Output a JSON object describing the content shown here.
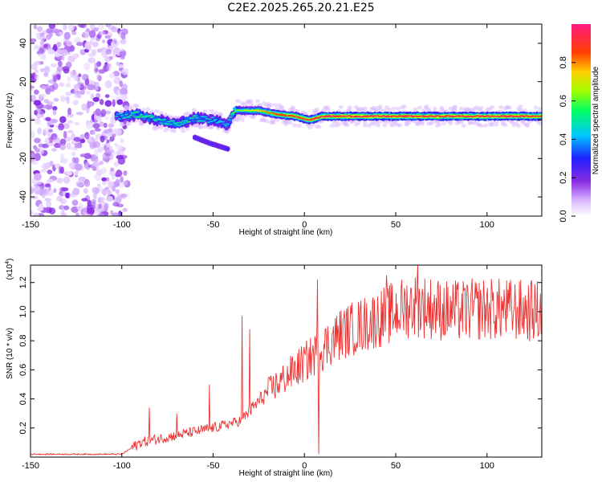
{
  "title": "C2E2.2025.265.20.21.E25",
  "chart_data": [
    {
      "type": "heatmap",
      "xlabel": "Height of straight line (km)",
      "ylabel": "Frequency (Hz)",
      "xlim": [
        -150,
        130
      ],
      "ylim": [
        -50,
        50
      ],
      "xticks": [
        "-150",
        "-100",
        "-50",
        "0",
        "50",
        "100"
      ],
      "yticks": [
        "-40",
        "-20",
        "0",
        "20",
        "40"
      ],
      "colorbar": {
        "label": "Normalized spectral amplitude",
        "range": [
          0,
          1
        ],
        "ticks": [
          "0.0",
          "0.2",
          "0.4",
          "0.6",
          "0.8"
        ]
      },
      "noise_region_x": [
        -150,
        -97
      ],
      "ridge": [
        {
          "x": -102,
          "y": 2,
          "amp": 0.45
        },
        {
          "x": -92,
          "y": 3,
          "amp": 0.55
        },
        {
          "x": -80,
          "y": 0,
          "amp": 0.5
        },
        {
          "x": -70,
          "y": -2,
          "amp": 0.5
        },
        {
          "x": -60,
          "y": 1,
          "amp": 0.5
        },
        {
          "x": -50,
          "y": 0,
          "amp": 0.45
        },
        {
          "x": -42,
          "y": -2,
          "amp": 0.45
        },
        {
          "x": -38,
          "y": 5,
          "amp": 0.6
        },
        {
          "x": -25,
          "y": 5,
          "amp": 0.75
        },
        {
          "x": -15,
          "y": 3,
          "amp": 0.85
        },
        {
          "x": -5,
          "y": 2,
          "amp": 0.9
        },
        {
          "x": 3,
          "y": 0,
          "amp": 0.9
        },
        {
          "x": 10,
          "y": 2,
          "amp": 0.95
        },
        {
          "x": 40,
          "y": 2,
          "amp": 0.95
        },
        {
          "x": 80,
          "y": 2,
          "amp": 0.95
        },
        {
          "x": 120,
          "y": 2,
          "amp": 0.95
        },
        {
          "x": 130,
          "y": 2,
          "amp": 0.9
        }
      ],
      "secondary_track": [
        {
          "x": -60,
          "y": -9
        },
        {
          "x": -52,
          "y": -12
        },
        {
          "x": -42,
          "y": -15
        }
      ]
    },
    {
      "type": "line",
      "xlabel": "Height of straight line (km)",
      "ylabel": "SNR (10 * v/v)",
      "yscale_label": "(x10",
      "yscale_exp": "4",
      "ylabel_suffix": ")",
      "xlim": [
        -150,
        130
      ],
      "ylim": [
        0,
        1.32
      ],
      "xticks": [
        "-150",
        "-100",
        "-50",
        "0",
        "50",
        "100"
      ],
      "yticks": [
        "0.2",
        "0.4",
        "0.6",
        "0.8",
        "1.0",
        "1.2"
      ],
      "color": "#ee3333",
      "trend": [
        {
          "x": -150,
          "y": 0.02
        },
        {
          "x": -100,
          "y": 0.02
        },
        {
          "x": -90,
          "y": 0.1
        },
        {
          "x": -70,
          "y": 0.15
        },
        {
          "x": -50,
          "y": 0.2
        },
        {
          "x": -35,
          "y": 0.25
        },
        {
          "x": -20,
          "y": 0.45
        },
        {
          "x": -5,
          "y": 0.6
        },
        {
          "x": 5,
          "y": 0.7
        },
        {
          "x": 20,
          "y": 0.85
        },
        {
          "x": 40,
          "y": 0.95
        },
        {
          "x": 60,
          "y": 1.05
        },
        {
          "x": 80,
          "y": 1.0
        },
        {
          "x": 100,
          "y": 1.02
        },
        {
          "x": 130,
          "y": 1.0
        }
      ],
      "spikes": [
        {
          "x": -85,
          "y": 0.34
        },
        {
          "x": -70,
          "y": 0.3
        },
        {
          "x": -52,
          "y": 0.5
        },
        {
          "x": -34,
          "y": 0.97
        },
        {
          "x": -30,
          "y": 0.88
        },
        {
          "x": 7,
          "y": 1.22
        },
        {
          "x": 8,
          "y": 0.02
        },
        {
          "x": 45,
          "y": 1.25
        },
        {
          "x": 62,
          "y": 1.33
        }
      ]
    }
  ]
}
